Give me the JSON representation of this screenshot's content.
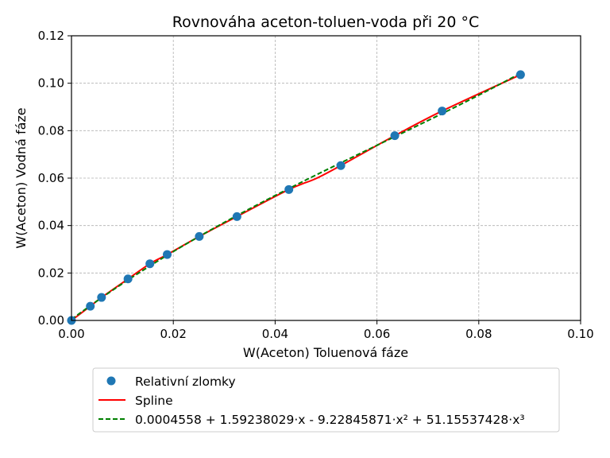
{
  "chart_data": {
    "type": "scatter",
    "title": "Rovnováha aceton-toluen-voda při 20 °C",
    "xlabel": "W(Aceton) Toluenová fáze",
    "ylabel": "W(Aceton) Vodná fáze",
    "xlim": [
      0.0,
      0.1
    ],
    "ylim": [
      0.0,
      0.12
    ],
    "xticks": [
      "0.00",
      "0.02",
      "0.04",
      "0.06",
      "0.08",
      "0.10"
    ],
    "yticks": [
      "0.00",
      "0.02",
      "0.04",
      "0.06",
      "0.08",
      "0.10",
      "0.12"
    ],
    "grid": true,
    "legend_position": "bottom-center (below axes)",
    "series": [
      {
        "name": "Relativní zlomky",
        "kind": "scatter",
        "color": "#1f77b4",
        "x": [
          0.0,
          0.0037,
          0.0059,
          0.0111,
          0.0154,
          0.0188,
          0.0251,
          0.0325,
          0.0427,
          0.0529,
          0.0635,
          0.0728,
          0.0882
        ],
        "y": [
          0.0,
          0.006,
          0.0097,
          0.0175,
          0.0239,
          0.0278,
          0.0354,
          0.0438,
          0.0552,
          0.0653,
          0.0779,
          0.0883,
          0.1036
        ]
      },
      {
        "name": "Spline",
        "kind": "line",
        "color": "#ff0000",
        "dash": "solid",
        "x": [
          0.0,
          0.0037,
          0.0059,
          0.0111,
          0.0154,
          0.0188,
          0.0251,
          0.0325,
          0.0427,
          0.048,
          0.0529,
          0.0585,
          0.0635,
          0.0728,
          0.0882
        ],
        "y": [
          0.0,
          0.006,
          0.0097,
          0.0175,
          0.0239,
          0.0278,
          0.0354,
          0.0438,
          0.0552,
          0.0598,
          0.0653,
          0.072,
          0.0779,
          0.0883,
          0.1036
        ]
      },
      {
        "name": "0.0004558 + 1.59238029·x - 9.22845871·x² + 51.15537428·x³",
        "kind": "fit",
        "color": "#008000",
        "dash": "dashed",
        "coefficients": [
          0.0004558,
          1.59238029,
          -9.22845871,
          51.15537428
        ],
        "x_range": [
          0.0,
          0.0882
        ]
      }
    ]
  }
}
